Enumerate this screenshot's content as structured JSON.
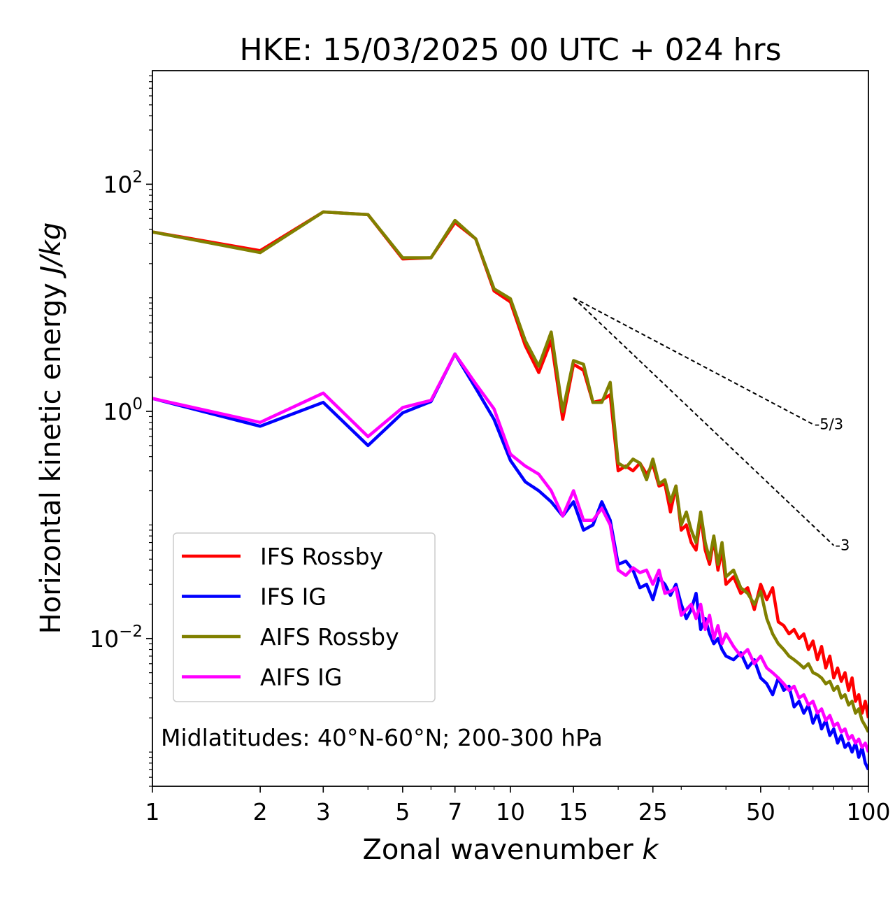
{
  "chart_data": {
    "type": "line",
    "title": "HKE: 15/03/2025 00 UTC + 024 hrs",
    "xlabel": "Zonal wavenumber k",
    "xlabel_main": "Zonal wavenumber ",
    "xlabel_var": "k",
    "ylabel": "Horizontal kinetic energy J/kg",
    "ylabel_main": "Horizontal kinetic energy ",
    "ylabel_units": "J/kg",
    "xscale": "log",
    "yscale": "log",
    "xlim": [
      1,
      100
    ],
    "ylim": [
      0.0005,
      1000
    ],
    "xticks": [
      1,
      2,
      3,
      5,
      7,
      10,
      15,
      25,
      50,
      100
    ],
    "xtick_labels": [
      "1",
      "2",
      "3",
      "5",
      "7",
      "10",
      "15",
      "25",
      "50",
      "100"
    ],
    "yticks": [
      {
        "value": 100,
        "base": "10",
        "exp": "2"
      },
      {
        "value": 1,
        "base": "10",
        "exp": "0"
      },
      {
        "value": 0.01,
        "base": "10",
        "exp": "−2"
      }
    ],
    "grid": false,
    "legend_position": "lower-left",
    "annotation": "Midlatitudes: 40°N-60°N; 200-300 hPa",
    "reference_lines": [
      {
        "label": "-5/3",
        "points": [
          [
            15,
            10.0
          ],
          [
            70,
            0.77
          ]
        ]
      },
      {
        "label": "-3",
        "points": [
          [
            15,
            10.0
          ],
          [
            80,
            0.066
          ]
        ]
      }
    ],
    "series": [
      {
        "name": "IFS Rossby",
        "color": "#ff0000",
        "x": [
          1,
          2,
          3,
          4,
          5,
          6,
          7,
          8,
          9,
          10,
          11,
          12,
          13,
          14,
          15,
          16,
          17,
          18,
          19,
          20,
          21,
          22,
          23,
          24,
          25,
          26,
          27,
          28,
          29,
          30,
          31,
          32,
          33,
          34,
          35,
          36,
          37,
          38,
          39,
          40,
          42,
          44,
          46,
          48,
          50,
          52,
          54,
          56,
          58,
          60,
          62,
          64,
          66,
          68,
          70,
          72,
          74,
          76,
          78,
          80,
          82,
          84,
          86,
          88,
          90,
          92,
          94,
          96,
          98,
          100
        ],
        "values": [
          38,
          26,
          57,
          54,
          22,
          22.5,
          46,
          33,
          11.5,
          9.2,
          3.8,
          2.2,
          4.2,
          0.85,
          2.6,
          2.3,
          1.2,
          1.25,
          1.4,
          0.3,
          0.33,
          0.3,
          0.35,
          0.28,
          0.34,
          0.22,
          0.23,
          0.13,
          0.22,
          0.09,
          0.1,
          0.07,
          0.06,
          0.12,
          0.06,
          0.045,
          0.075,
          0.04,
          0.06,
          0.03,
          0.035,
          0.025,
          0.028,
          0.018,
          0.03,
          0.022,
          0.028,
          0.014,
          0.013,
          0.011,
          0.012,
          0.01,
          0.011,
          0.008,
          0.0095,
          0.0065,
          0.0085,
          0.0055,
          0.007,
          0.0045,
          0.0055,
          0.0042,
          0.005,
          0.0035,
          0.0045,
          0.0028,
          0.0032,
          0.0022,
          0.0028,
          0.002
        ]
      },
      {
        "name": "IFS IG",
        "color": "#0000ff",
        "x": [
          1,
          2,
          3,
          4,
          5,
          6,
          7,
          8,
          9,
          10,
          11,
          12,
          13,
          14,
          15,
          16,
          17,
          18,
          19,
          20,
          21,
          22,
          23,
          24,
          25,
          26,
          27,
          28,
          29,
          30,
          31,
          32,
          33,
          34,
          35,
          36,
          37,
          38,
          39,
          40,
          42,
          44,
          46,
          48,
          50,
          52,
          54,
          56,
          58,
          60,
          62,
          64,
          66,
          68,
          70,
          72,
          74,
          76,
          78,
          80,
          82,
          84,
          86,
          88,
          90,
          92,
          94,
          96,
          98,
          100
        ],
        "values": [
          1.3,
          0.74,
          1.2,
          0.5,
          0.97,
          1.22,
          3.2,
          1.6,
          0.85,
          0.37,
          0.24,
          0.2,
          0.16,
          0.12,
          0.16,
          0.09,
          0.1,
          0.16,
          0.11,
          0.045,
          0.048,
          0.04,
          0.028,
          0.03,
          0.022,
          0.034,
          0.03,
          0.024,
          0.03,
          0.02,
          0.015,
          0.018,
          0.025,
          0.012,
          0.015,
          0.011,
          0.009,
          0.01,
          0.008,
          0.007,
          0.0065,
          0.0075,
          0.0055,
          0.0065,
          0.0045,
          0.004,
          0.0032,
          0.0045,
          0.0035,
          0.0038,
          0.0025,
          0.0028,
          0.0022,
          0.0026,
          0.0018,
          0.0022,
          0.0016,
          0.0019,
          0.0014,
          0.0016,
          0.0012,
          0.0014,
          0.0011,
          0.0012,
          0.001,
          0.0012,
          0.0009,
          0.0011,
          0.0008,
          0.0007
        ]
      },
      {
        "name": "AIFS Rossby",
        "color": "#808000",
        "x": [
          1,
          2,
          3,
          4,
          5,
          6,
          7,
          8,
          9,
          10,
          11,
          12,
          13,
          14,
          15,
          16,
          17,
          18,
          19,
          20,
          21,
          22,
          23,
          24,
          25,
          26,
          27,
          28,
          29,
          30,
          31,
          32,
          33,
          34,
          35,
          36,
          37,
          38,
          39,
          40,
          42,
          44,
          46,
          48,
          50,
          52,
          54,
          56,
          58,
          60,
          62,
          64,
          66,
          68,
          70,
          72,
          74,
          76,
          78,
          80,
          82,
          84,
          86,
          88,
          90,
          92,
          94,
          96,
          98,
          100
        ],
        "values": [
          38,
          25,
          57,
          54,
          22.5,
          22.5,
          48,
          33,
          12,
          9.8,
          4.2,
          2.5,
          5,
          1.0,
          2.8,
          2.6,
          1.2,
          1.2,
          1.8,
          0.35,
          0.32,
          0.38,
          0.35,
          0.25,
          0.38,
          0.23,
          0.25,
          0.16,
          0.22,
          0.1,
          0.13,
          0.09,
          0.07,
          0.13,
          0.07,
          0.05,
          0.08,
          0.045,
          0.07,
          0.035,
          0.04,
          0.028,
          0.025,
          0.02,
          0.026,
          0.015,
          0.011,
          0.009,
          0.008,
          0.007,
          0.0065,
          0.006,
          0.0055,
          0.006,
          0.005,
          0.0048,
          0.0045,
          0.004,
          0.0042,
          0.0035,
          0.0038,
          0.003,
          0.0032,
          0.0026,
          0.0028,
          0.0022,
          0.0024,
          0.0019,
          0.0017,
          0.0015
        ]
      },
      {
        "name": "AIFS IG",
        "color": "#ff00ff",
        "x": [
          1,
          2,
          3,
          4,
          5,
          6,
          7,
          8,
          9,
          10,
          11,
          12,
          13,
          14,
          15,
          16,
          17,
          18,
          19,
          20,
          21,
          22,
          23,
          24,
          25,
          26,
          27,
          28,
          29,
          30,
          31,
          32,
          33,
          34,
          35,
          36,
          37,
          38,
          39,
          40,
          42,
          44,
          46,
          48,
          50,
          52,
          54,
          56,
          58,
          60,
          62,
          64,
          66,
          68,
          70,
          72,
          74,
          76,
          78,
          80,
          82,
          84,
          86,
          88,
          90,
          92,
          94,
          96,
          98,
          100
        ],
        "values": [
          1.3,
          0.8,
          1.45,
          0.6,
          1.08,
          1.25,
          3.2,
          1.75,
          1.05,
          0.42,
          0.33,
          0.28,
          0.2,
          0.12,
          0.2,
          0.11,
          0.11,
          0.14,
          0.1,
          0.04,
          0.036,
          0.042,
          0.038,
          0.04,
          0.03,
          0.04,
          0.025,
          0.026,
          0.028,
          0.016,
          0.018,
          0.02,
          0.015,
          0.02,
          0.012,
          0.016,
          0.01,
          0.013,
          0.009,
          0.011,
          0.0085,
          0.007,
          0.008,
          0.006,
          0.007,
          0.0055,
          0.005,
          0.0045,
          0.004,
          0.0035,
          0.0038,
          0.003,
          0.0032,
          0.0026,
          0.0028,
          0.0022,
          0.0024,
          0.0019,
          0.0021,
          0.0017,
          0.0018,
          0.0015,
          0.0016,
          0.0013,
          0.0014,
          0.0012,
          0.0013,
          0.0011,
          0.0012,
          0.001
        ]
      }
    ]
  }
}
